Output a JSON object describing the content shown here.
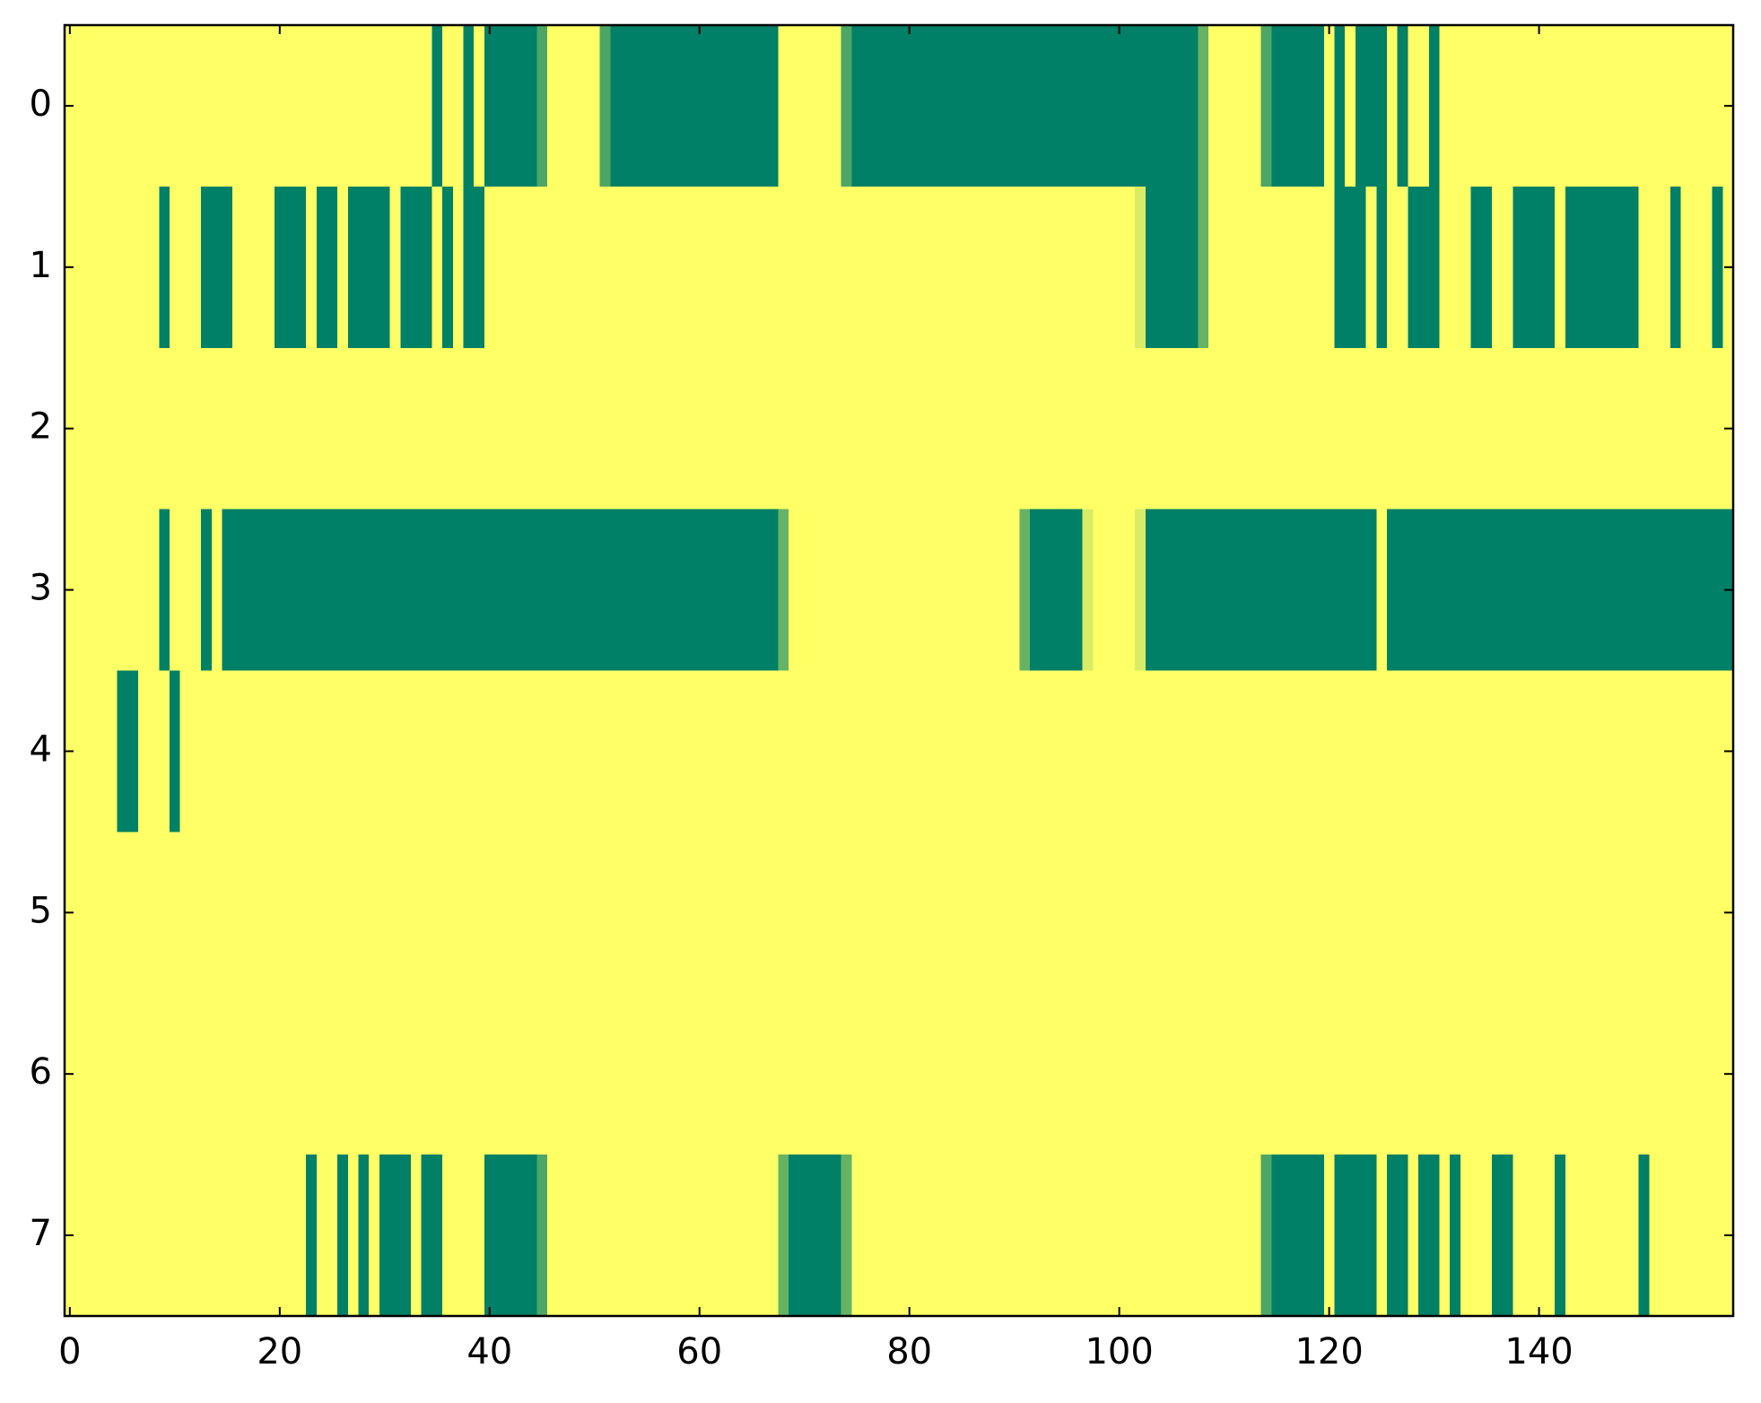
{
  "chart_data": {
    "type": "heatmap",
    "colors": [
      "#008066",
      "#ffff66"
    ],
    "xlim": [
      -0.5,
      158.5
    ],
    "ylim": [
      7.5,
      -0.5
    ],
    "xticks": [
      0,
      20,
      40,
      60,
      80,
      100,
      120,
      140
    ],
    "yticks": [
      0,
      1,
      2,
      3,
      4,
      5,
      6,
      7
    ],
    "values": [
      [
        1,
        1,
        1,
        1,
        1,
        1,
        1,
        1,
        1,
        1,
        1,
        1,
        1,
        1,
        1,
        1,
        1,
        1,
        1,
        1,
        1,
        1,
        1,
        1,
        1,
        1,
        1,
        1,
        1,
        1,
        1,
        1,
        1,
        1,
        1,
        0,
        1,
        1,
        0,
        1,
        0,
        0,
        0,
        0,
        0,
        0.3,
        1,
        1,
        1,
        1,
        1,
        0.3,
        0,
        0,
        0,
        0,
        0,
        0,
        0,
        0,
        0,
        0,
        0,
        0,
        0,
        0,
        0,
        0,
        1,
        1,
        1,
        1,
        1,
        1,
        0.3,
        0,
        0,
        0,
        0,
        0,
        0,
        0,
        0,
        0,
        0,
        0,
        0,
        0,
        0,
        0,
        0,
        0,
        0,
        0,
        0,
        0,
        0,
        0,
        0,
        0,
        0,
        0,
        0,
        0,
        0,
        0,
        0,
        0,
        0.4,
        1,
        1,
        1,
        1,
        1,
        0.3,
        0,
        0,
        0,
        0,
        0,
        1,
        0,
        1,
        0,
        0,
        0,
        1,
        0,
        1,
        1,
        0,
        1,
        1,
        1,
        1,
        1,
        1,
        1,
        1,
        1,
        1,
        1,
        1,
        1,
        1,
        1,
        1,
        1,
        1,
        1,
        1,
        1,
        1,
        1,
        1,
        1,
        1,
        1,
        1
      ],
      [
        1,
        1,
        1,
        1,
        1,
        1,
        1,
        1,
        1,
        0,
        1,
        1,
        1,
        0,
        0,
        0,
        1,
        1,
        1,
        1,
        0,
        0,
        0,
        1,
        0,
        0,
        1,
        0,
        0,
        0,
        0,
        1,
        0,
        0,
        0,
        1,
        0,
        1,
        0,
        0,
        1,
        1,
        1,
        1,
        1,
        1,
        1,
        1,
        1,
        1,
        1,
        1,
        1,
        1,
        1,
        1,
        1,
        1,
        1,
        1,
        1,
        1,
        1,
        1,
        1,
        1,
        1,
        1,
        1,
        1,
        1,
        1,
        1,
        1,
        1,
        1,
        1,
        1,
        1,
        1,
        1,
        1,
        1,
        1,
        1,
        1,
        1,
        1,
        1,
        1,
        1,
        1,
        1,
        1,
        1,
        1,
        1,
        1,
        1,
        1,
        1,
        1,
        0.85,
        0,
        0,
        0,
        0,
        0,
        0.4,
        1,
        1,
        1,
        1,
        1,
        1,
        1,
        1,
        1,
        1,
        1,
        1,
        0,
        0,
        0,
        1,
        0,
        1,
        1,
        0,
        0,
        0,
        1,
        1,
        1,
        0,
        0,
        1,
        1,
        0,
        0,
        0,
        0,
        1,
        0,
        0,
        0,
        0,
        0,
        0,
        0,
        1,
        1,
        1,
        0,
        1,
        1,
        1,
        0,
        1
      ],
      [
        1,
        1,
        1,
        1,
        1,
        1,
        1,
        1,
        1,
        1,
        1,
        1,
        1,
        1,
        1,
        1,
        1,
        1,
        1,
        1,
        1,
        1,
        1,
        1,
        1,
        1,
        1,
        1,
        1,
        1,
        1,
        1,
        1,
        1,
        1,
        1,
        1,
        1,
        1,
        1,
        1,
        1,
        1,
        1,
        1,
        1,
        1,
        1,
        1,
        1,
        1,
        1,
        1,
        1,
        1,
        1,
        1,
        1,
        1,
        1,
        1,
        1,
        1,
        1,
        1,
        1,
        1,
        1,
        1,
        1,
        1,
        1,
        1,
        1,
        1,
        1,
        1,
        1,
        1,
        1,
        1,
        1,
        1,
        1,
        1,
        1,
        1,
        1,
        1,
        1,
        1,
        1,
        1,
        1,
        1,
        1,
        1,
        1,
        1,
        1,
        1,
        1,
        1,
        1,
        1,
        1,
        1,
        1,
        1,
        1,
        1,
        1,
        1,
        1,
        1,
        1,
        1,
        1,
        1,
        1,
        1,
        1,
        1,
        1,
        1,
        1,
        1,
        1,
        1,
        1,
        1,
        1,
        1,
        1,
        1,
        1,
        1,
        1,
        1,
        1,
        1,
        1,
        1,
        1,
        1,
        1,
        1,
        1,
        1,
        1,
        1,
        1,
        1,
        1,
        1,
        1,
        1,
        1,
        1
      ],
      [
        1,
        1,
        1,
        1,
        1,
        1,
        1,
        1,
        1,
        0,
        1,
        1,
        1,
        0,
        1,
        0,
        0,
        0,
        0,
        0,
        0,
        0,
        0,
        0,
        0,
        0,
        0,
        0,
        0,
        0,
        0,
        0,
        0,
        0,
        0,
        0,
        0,
        0,
        0,
        0,
        0,
        0,
        0,
        0,
        0,
        0,
        0,
        0,
        0,
        0,
        0,
        0,
        0,
        0,
        0,
        0,
        0,
        0,
        0,
        0,
        0,
        0,
        0,
        0,
        0,
        0,
        0,
        0,
        0.4,
        1,
        1,
        1,
        1,
        1,
        1,
        1,
        1,
        1,
        1,
        1,
        1,
        1,
        1,
        1,
        1,
        1,
        1,
        1,
        1,
        1,
        1,
        0.4,
        0,
        0,
        0,
        0,
        0,
        0.85,
        1,
        1,
        1,
        1,
        0.85,
        0,
        0,
        0,
        0,
        0,
        0,
        0,
        0,
        0,
        0,
        0,
        0,
        0,
        0,
        0,
        0,
        0,
        0,
        0,
        0,
        0,
        0,
        1,
        0,
        0,
        0,
        0,
        0,
        0,
        0,
        0,
        0,
        0,
        0,
        0,
        0,
        0,
        0,
        0,
        0,
        0,
        0,
        0,
        0,
        0,
        0,
        0,
        0,
        0,
        0,
        0,
        0,
        0,
        0,
        0,
        0
      ],
      [
        1,
        1,
        1,
        1,
        1,
        0,
        0,
        1,
        1,
        1,
        0,
        1,
        1,
        1,
        1,
        1,
        1,
        1,
        1,
        1,
        1,
        1,
        1,
        1,
        1,
        1,
        1,
        1,
        1,
        1,
        1,
        1,
        1,
        1,
        1,
        1,
        1,
        1,
        1,
        1,
        1,
        1,
        1,
        1,
        1,
        1,
        1,
        1,
        1,
        1,
        1,
        1,
        1,
        1,
        1,
        1,
        1,
        1,
        1,
        1,
        1,
        1,
        1,
        1,
        1,
        1,
        1,
        1,
        1,
        1,
        1,
        1,
        1,
        1,
        1,
        1,
        1,
        1,
        1,
        1,
        1,
        1,
        1,
        1,
        1,
        1,
        1,
        1,
        1,
        1,
        1,
        1,
        1,
        1,
        1,
        1,
        1,
        1,
        1,
        1,
        1,
        1,
        1,
        1,
        1,
        1,
        1,
        1,
        1,
        1,
        1,
        1,
        1,
        1,
        1,
        1,
        1,
        1,
        1,
        1,
        1,
        1,
        1,
        1,
        1,
        1,
        1,
        1,
        1,
        1,
        1,
        1,
        1,
        1,
        1,
        1,
        1,
        1,
        1,
        1,
        1,
        1,
        1,
        1,
        1,
        1,
        1,
        1,
        1,
        1,
        1,
        1,
        1,
        1,
        1,
        1,
        1,
        1,
        1
      ],
      [
        1,
        1,
        1,
        1,
        1,
        1,
        1,
        1,
        1,
        1,
        1,
        1,
        1,
        1,
        1,
        1,
        1,
        1,
        1,
        1,
        1,
        1,
        1,
        1,
        1,
        1,
        1,
        1,
        1,
        1,
        1,
        1,
        1,
        1,
        1,
        1,
        1,
        1,
        1,
        1,
        1,
        1,
        1,
        1,
        1,
        1,
        1,
        1,
        1,
        1,
        1,
        1,
        1,
        1,
        1,
        1,
        1,
        1,
        1,
        1,
        1,
        1,
        1,
        1,
        1,
        1,
        1,
        1,
        1,
        1,
        1,
        1,
        1,
        1,
        1,
        1,
        1,
        1,
        1,
        1,
        1,
        1,
        1,
        1,
        1,
        1,
        1,
        1,
        1,
        1,
        1,
        1,
        1,
        1,
        1,
        1,
        1,
        1,
        1,
        1,
        1,
        1,
        1,
        1,
        1,
        1,
        1,
        1,
        1,
        1,
        1,
        1,
        1,
        1,
        1,
        1,
        1,
        1,
        1,
        1,
        1,
        1,
        1,
        1,
        1,
        1,
        1,
        1,
        1,
        1,
        1,
        1,
        1,
        1,
        1,
        1,
        1,
        1,
        1,
        1,
        1,
        1,
        1,
        1,
        1,
        1,
        1,
        1,
        1,
        1,
        1,
        1,
        1,
        1,
        1,
        1,
        1,
        1,
        1
      ],
      [
        1,
        1,
        1,
        1,
        1,
        1,
        1,
        1,
        1,
        1,
        1,
        1,
        1,
        1,
        1,
        1,
        1,
        1,
        1,
        1,
        1,
        1,
        1,
        1,
        1,
        1,
        1,
        1,
        1,
        1,
        1,
        1,
        1,
        1,
        1,
        1,
        1,
        1,
        1,
        1,
        1,
        1,
        1,
        1,
        1,
        1,
        1,
        1,
        1,
        1,
        1,
        1,
        1,
        1,
        1,
        1,
        1,
        1,
        1,
        1,
        1,
        1,
        1,
        1,
        1,
        1,
        1,
        1,
        1,
        1,
        1,
        1,
        1,
        1,
        1,
        1,
        1,
        1,
        1,
        1,
        1,
        1,
        1,
        1,
        1,
        1,
        1,
        1,
        1,
        1,
        1,
        1,
        1,
        1,
        1,
        1,
        1,
        1,
        1,
        1,
        1,
        1,
        1,
        1,
        1,
        1,
        1,
        1,
        1,
        1,
        1,
        1,
        1,
        1,
        1,
        1,
        1,
        1,
        1,
        1,
        1,
        1,
        1,
        1,
        1,
        1,
        1,
        1,
        1,
        1,
        1,
        1,
        1,
        1,
        1,
        1,
        1,
        1,
        1,
        1,
        1,
        1,
        1,
        1,
        1,
        1,
        1,
        1,
        1,
        1,
        1,
        1,
        1,
        1,
        1,
        1,
        1,
        1,
        1
      ],
      [
        1,
        1,
        1,
        1,
        1,
        1,
        1,
        1,
        1,
        1,
        1,
        1,
        1,
        1,
        1,
        1,
        1,
        1,
        1,
        1,
        1,
        1,
        1,
        0,
        1,
        1,
        0,
        1,
        0,
        1,
        0,
        0,
        0,
        1,
        0,
        0,
        1,
        1,
        1,
        1,
        0,
        0,
        0,
        0,
        0,
        0.3,
        1,
        1,
        1,
        1,
        1,
        1,
        1,
        1,
        1,
        1,
        1,
        1,
        1,
        1,
        1,
        1,
        1,
        1,
        1,
        1,
        1,
        1,
        0.4,
        0,
        0,
        0,
        0,
        0,
        0.4,
        1,
        1,
        1,
        1,
        1,
        1,
        1,
        1,
        1,
        1,
        1,
        1,
        1,
        1,
        1,
        1,
        1,
        1,
        1,
        1,
        1,
        1,
        1,
        1,
        1,
        1,
        1,
        1,
        1,
        1,
        1,
        1,
        1,
        1,
        1,
        1,
        1,
        1,
        1,
        0.3,
        0,
        0,
        0,
        0,
        0,
        1,
        0,
        0,
        0,
        0,
        1,
        0,
        0,
        1,
        0,
        0,
        1,
        0,
        1,
        1,
        1,
        0,
        0,
        1,
        1,
        1,
        1,
        0,
        1,
        1,
        1,
        1,
        1,
        1,
        1,
        0,
        1,
        1,
        1,
        1,
        1,
        1,
        1,
        1
      ]
    ]
  }
}
